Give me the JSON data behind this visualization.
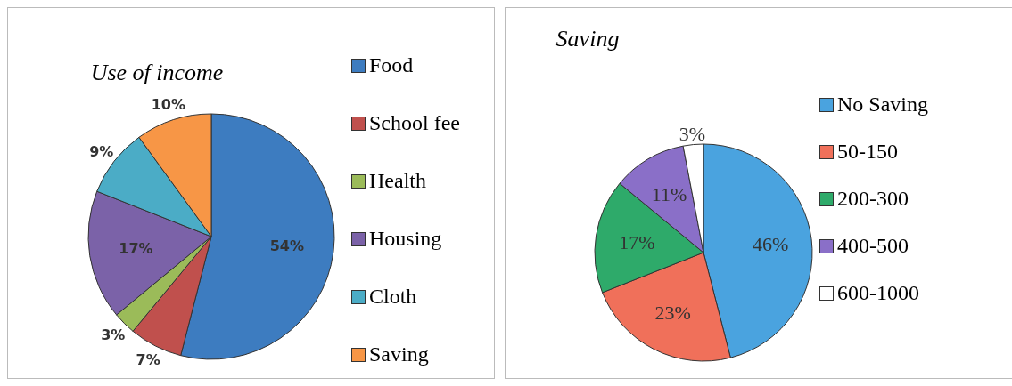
{
  "chart_data": [
    {
      "type": "pie",
      "title": "Use of income",
      "categories": [
        "Food",
        "School fee",
        "Health",
        "Housing",
        "Cloth",
        "Saving"
      ],
      "values": [
        54,
        7,
        3,
        17,
        9,
        10
      ],
      "value_labels": [
        "54%",
        "7%",
        "3%",
        "17%",
        "9%",
        "10%"
      ],
      "colors": [
        "#3d7cc0",
        "#c0504d",
        "#9bbb59",
        "#7b62a8",
        "#4bacc6",
        "#f79646"
      ],
      "legend": "right"
    },
    {
      "type": "pie",
      "title": "Saving",
      "categories": [
        "No Saving",
        "50-150",
        "200-300",
        "400-500",
        "600-1000"
      ],
      "values": [
        46,
        23,
        17,
        11,
        3
      ],
      "value_labels": [
        "46%",
        "23%",
        "17%",
        "11%",
        "3%"
      ],
      "colors": [
        "#4aa3df",
        "#f0705a",
        "#2eaa6a",
        "#8a6fc8",
        "#ffffff"
      ],
      "legend": "right"
    }
  ]
}
